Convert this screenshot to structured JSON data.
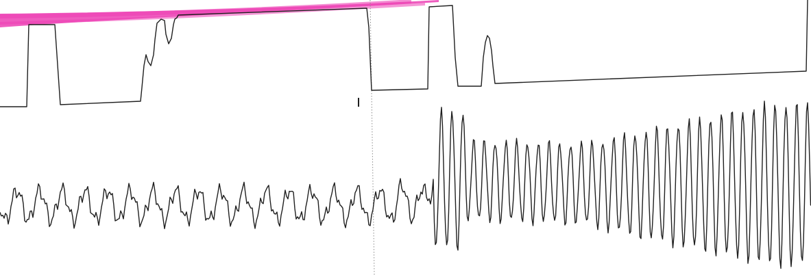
{
  "recording": {
    "highlight_color": "#ec3fb4",
    "trace_color": "#1f1f1f",
    "paper_color": "#ffffff",
    "divider_color": "#8c8c8c"
  }
}
